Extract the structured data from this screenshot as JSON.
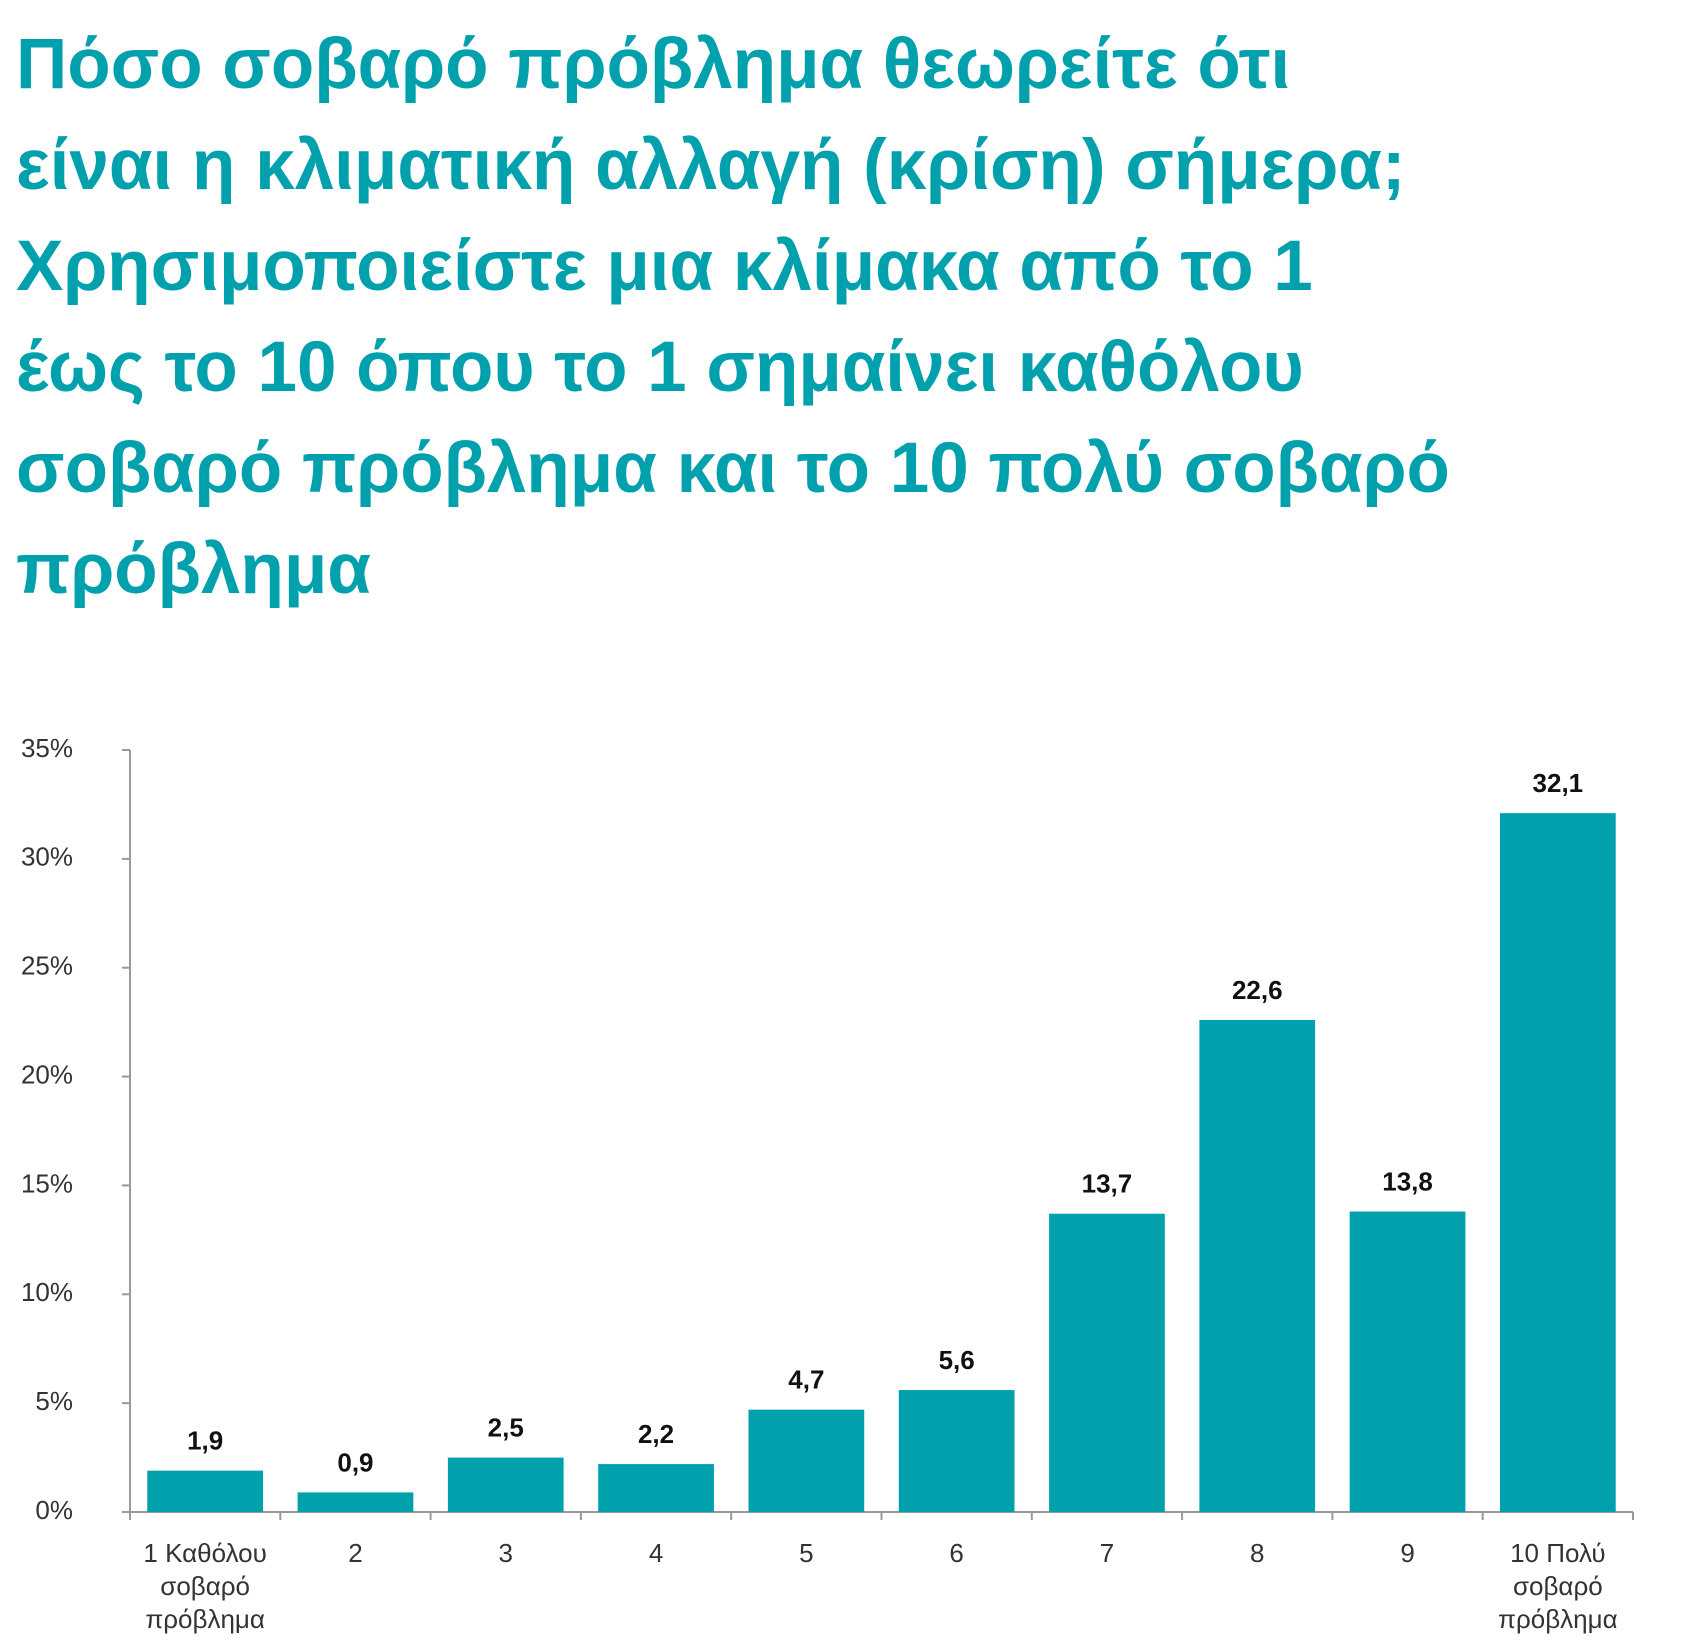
{
  "chart_data": {
    "type": "bar",
    "title": "Πόσο σοβαρό πρόβλημα θεωρείτε ότι\nείναι η κλιματική αλλαγή (κρίση) σήμερα;\nΧρησιμοποιείστε μια κλίμακα από το 1\nέως το 10 όπου το 1 σημαίνει καθόλου\nσοβαρό πρόβλημα και το 10 πολύ σοβαρό\nπρόβλημα",
    "categories": [
      "1 Καθόλου σοβαρό πρόβλημα",
      "2",
      "3",
      "4",
      "5",
      "6",
      "7",
      "8",
      "9",
      "10 Πολύ σοβαρό πρόβλημα"
    ],
    "values": [
      1.9,
      0.9,
      2.5,
      2.2,
      4.7,
      5.6,
      13.7,
      22.6,
      13.8,
      32.1
    ],
    "value_labels": [
      "1,9",
      "0,9",
      "2,5",
      "2,2",
      "4,7",
      "5,6",
      "13,7",
      "22,6",
      "13,8",
      "32,1"
    ],
    "color": "#00a1ad",
    "ylim": [
      0,
      35
    ],
    "yticks": [
      {
        "value": 0,
        "label": "0%"
      },
      {
        "value": 5,
        "label": "5%"
      },
      {
        "value": 10,
        "label": "10%"
      },
      {
        "value": 15,
        "label": "15%"
      },
      {
        "value": 20,
        "label": "20%"
      },
      {
        "value": 25,
        "label": "25%"
      },
      {
        "value": 30,
        "label": "30%"
      },
      {
        "value": 35,
        "label": "35%"
      }
    ],
    "grid": false
  }
}
